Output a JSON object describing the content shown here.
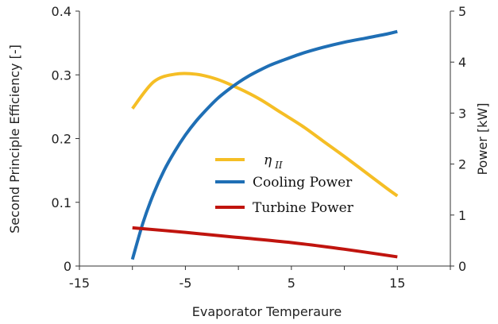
{
  "chart_data": {
    "type": "line",
    "xlabel": "Evaporator Temperaure",
    "ylabel_left": "Second Principle Efficiency [-]",
    "ylabel_right": "Power [kW]",
    "xlim": [
      -15,
      20
    ],
    "ylim_left": [
      0,
      0.4
    ],
    "ylim_right": [
      0,
      5
    ],
    "x_ticks": [
      "-15",
      "-5",
      "5",
      "15"
    ],
    "x_tick_values": [
      -15,
      -5,
      5,
      15
    ],
    "y_left_ticks": [
      "0",
      "0.1",
      "0.2",
      "0.3",
      "0.4"
    ],
    "y_left_tick_values": [
      0,
      0.1,
      0.2,
      0.3,
      0.4
    ],
    "y_right_ticks": [
      "0",
      "1",
      "2",
      "3",
      "4",
      "5"
    ],
    "y_right_tick_values": [
      0,
      1,
      2,
      3,
      4,
      5
    ],
    "grid": false,
    "legend_placement": "center",
    "series": [
      {
        "name": "η",
        "name_subscript": "II",
        "axis": "left",
        "color": "#F5BE25",
        "x": [
          -10,
          -8,
          -6,
          -4,
          -2,
          0,
          2,
          4,
          6,
          8,
          10,
          12,
          14,
          15
        ],
        "y": [
          0.247,
          0.289,
          0.301,
          0.301,
          0.293,
          0.279,
          0.262,
          0.241,
          0.22,
          0.196,
          0.172,
          0.147,
          0.122,
          0.11
        ]
      },
      {
        "name": "Cooling Power",
        "axis": "right",
        "color": "#1F6FB5",
        "x": [
          -10,
          -9,
          -8,
          -7,
          -6,
          -5,
          -4,
          -3,
          -2,
          -1,
          0,
          1,
          2,
          3,
          4,
          6,
          8,
          10,
          12,
          14,
          15
        ],
        "y": [
          0.13,
          0.85,
          1.42,
          1.88,
          2.25,
          2.57,
          2.84,
          3.07,
          3.28,
          3.45,
          3.6,
          3.73,
          3.84,
          3.94,
          4.02,
          4.17,
          4.29,
          4.39,
          4.47,
          4.55,
          4.6
        ]
      },
      {
        "name": "Turbine Power",
        "axis": "right",
        "color": "#C0140E",
        "x": [
          -10,
          -5,
          0,
          5,
          10,
          15
        ],
        "y": [
          0.75,
          0.66,
          0.56,
          0.46,
          0.33,
          0.18
        ]
      }
    ]
  }
}
